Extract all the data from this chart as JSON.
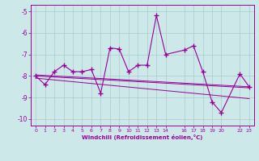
{
  "x": [
    0,
    1,
    2,
    3,
    4,
    5,
    6,
    7,
    8,
    9,
    10,
    11,
    12,
    13,
    14,
    16,
    17,
    18,
    19,
    20,
    22,
    23
  ],
  "y_main": [
    -8.0,
    -8.4,
    -7.8,
    -7.5,
    -7.8,
    -7.8,
    -7.7,
    -8.8,
    -6.7,
    -6.75,
    -7.8,
    -7.5,
    -7.5,
    -5.2,
    -7.0,
    -6.8,
    -6.6,
    -7.8,
    -9.2,
    -9.7,
    -7.9,
    -8.5
  ],
  "trend1_x": [
    0,
    23
  ],
  "trend1_y": [
    -8.0,
    -8.55
  ],
  "trend2_x": [
    0,
    23
  ],
  "trend2_y": [
    -8.1,
    -9.05
  ],
  "trend3_x": [
    0,
    23
  ],
  "trend3_y": [
    -7.95,
    -8.5
  ],
  "xlim": [
    -0.5,
    23.5
  ],
  "ylim": [
    -10.3,
    -4.7
  ],
  "yticks": [
    -10,
    -9,
    -8,
    -7,
    -6,
    -5
  ],
  "xticks": [
    0,
    1,
    2,
    3,
    4,
    5,
    6,
    7,
    8,
    9,
    10,
    11,
    12,
    13,
    14,
    16,
    17,
    18,
    19,
    20,
    22,
    23
  ],
  "xlabel": "Windchill (Refroidissement éolien,°C)",
  "line_color": "#990099",
  "bg_color": "#cce8e8",
  "grid_color": "#aacccc"
}
